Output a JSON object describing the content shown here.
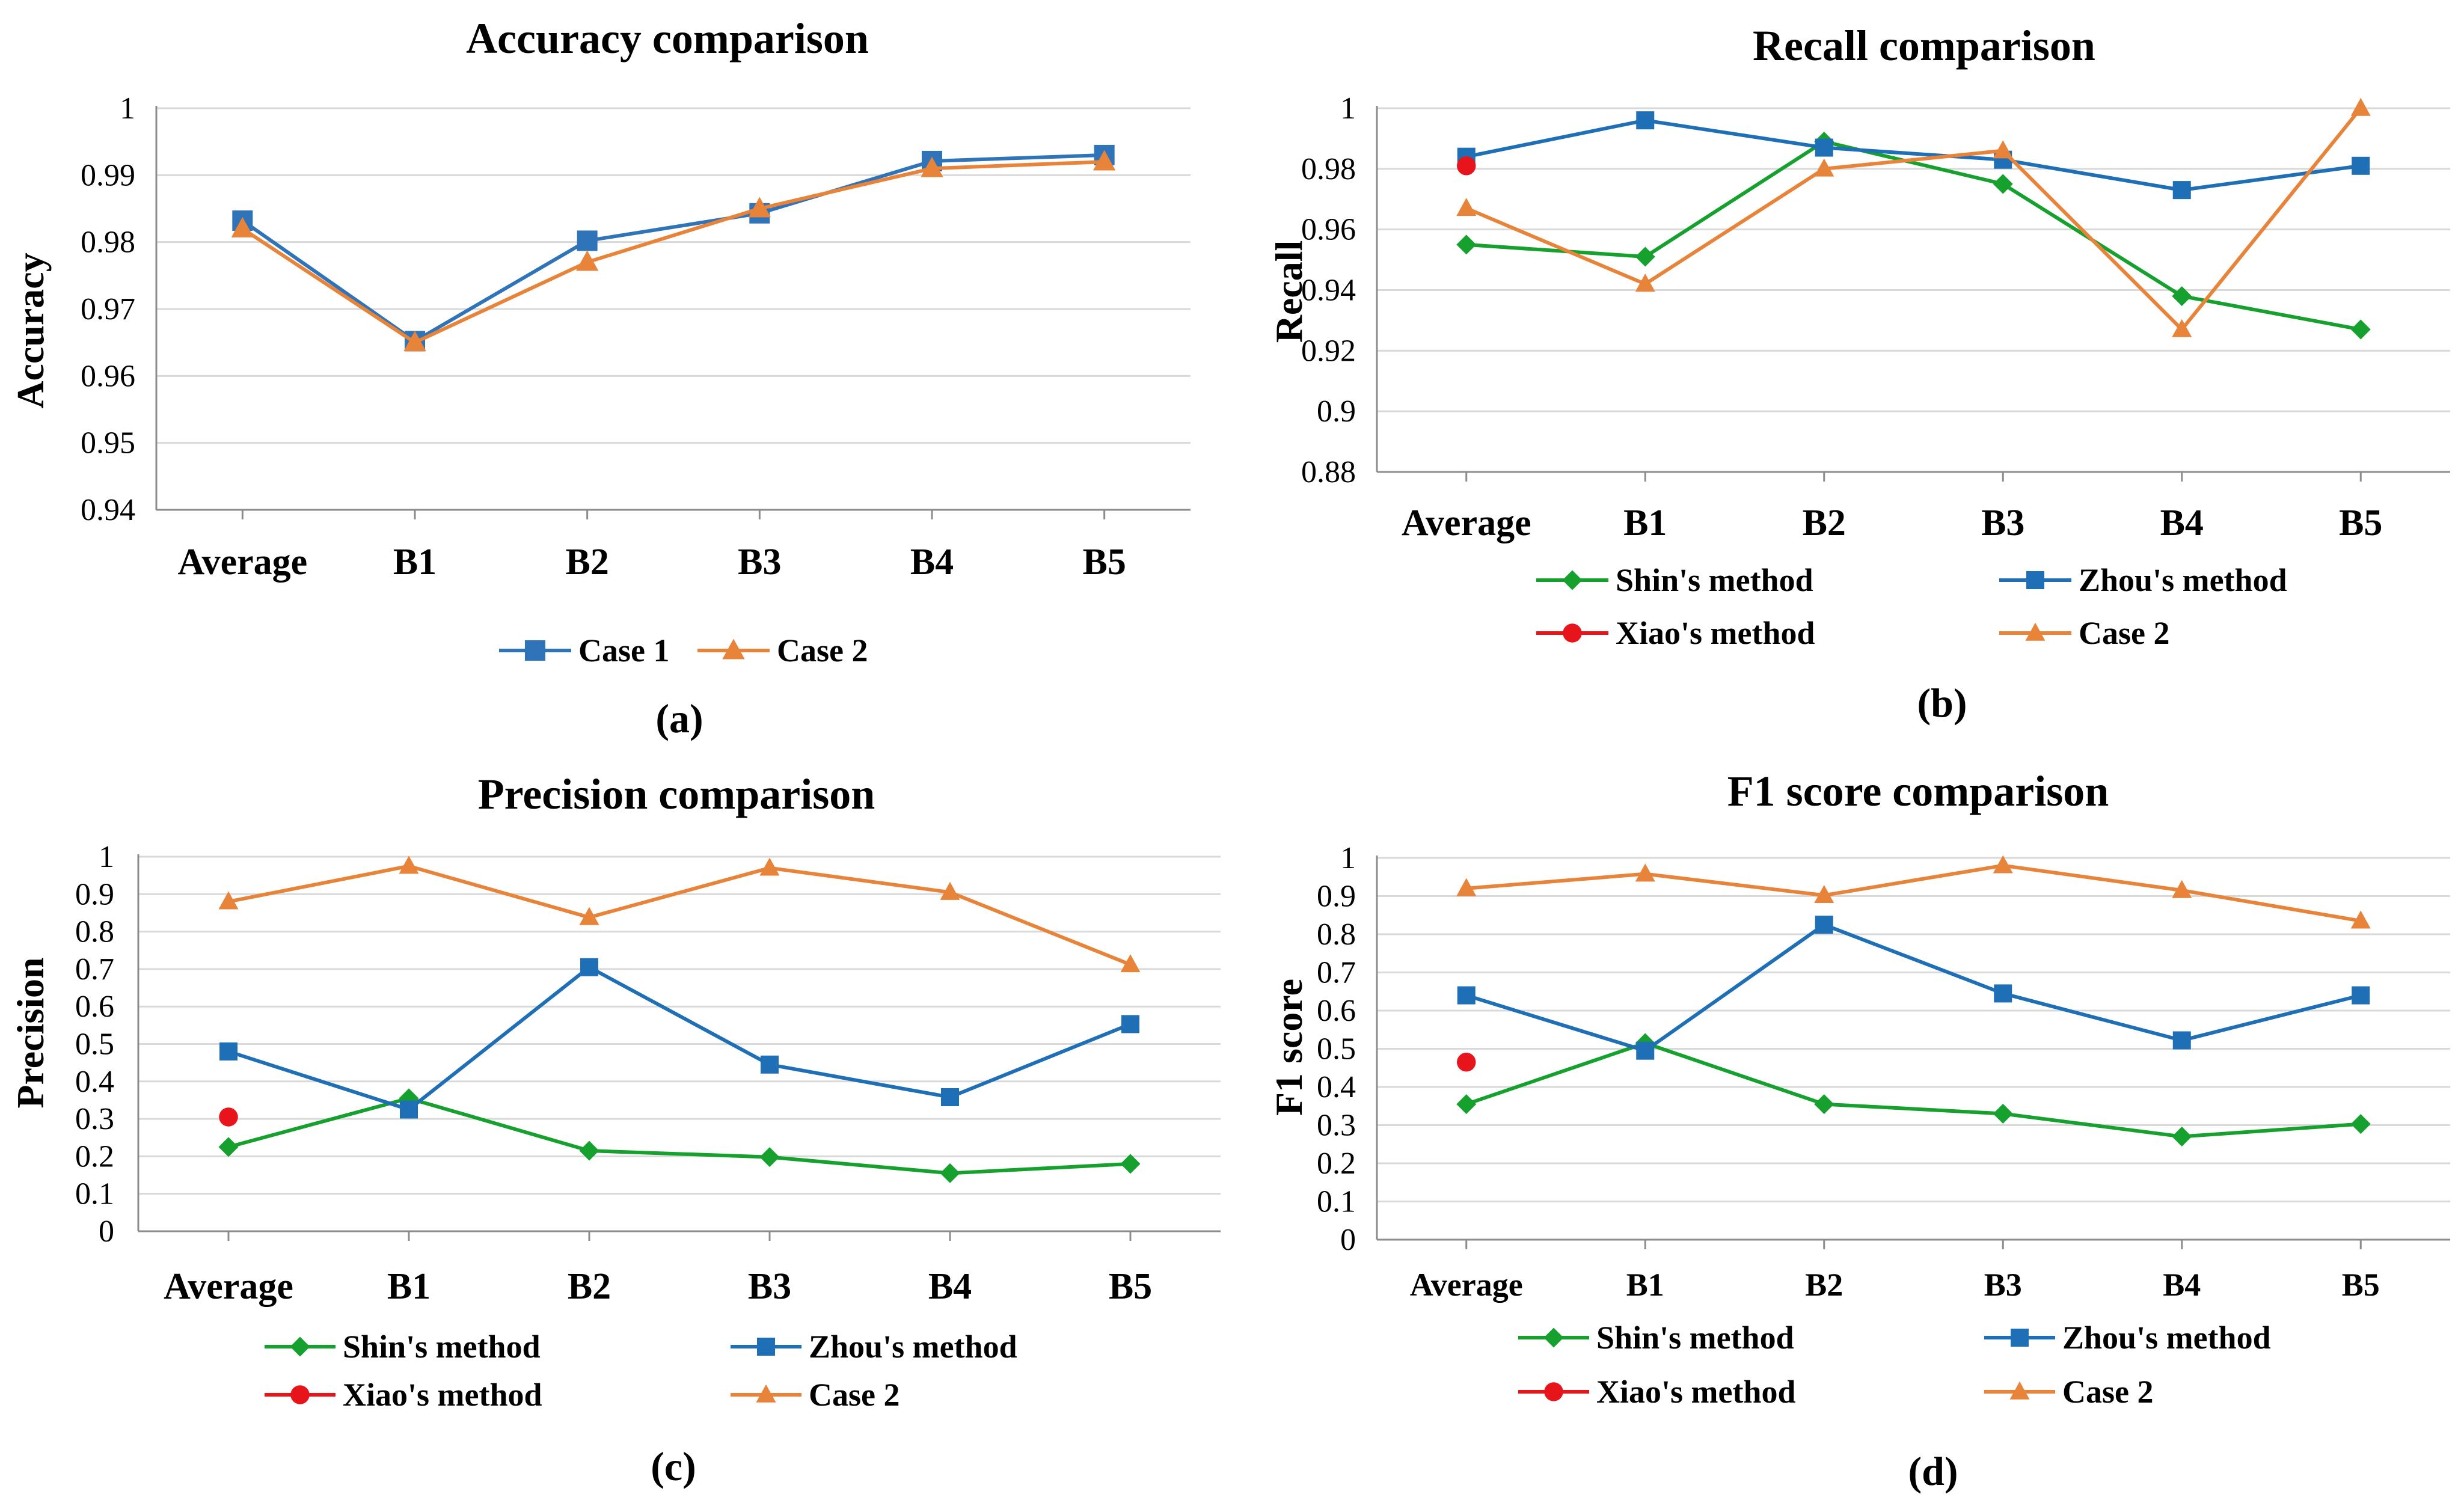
{
  "colors": {
    "shin": "#16a02e",
    "zhou": "#1f6fb6",
    "xiao": "#e8141c",
    "case2": "#e8843a",
    "case1": "#2f73b8"
  },
  "chart_data": [
    {
      "id": "a",
      "type": "line",
      "title": "Accuracy comparison",
      "ylabel": "Accuracy",
      "caption": "(a)",
      "categories": [
        "Average",
        "B1",
        "B2",
        "B3",
        "B4",
        "B5"
      ],
      "ylim": [
        0.94,
        1
      ],
      "yticks": [
        "0.94",
        "0.95",
        "0.96",
        "0.97",
        "0.98",
        "0.99",
        "1"
      ],
      "series": [
        {
          "name": "Case 1",
          "color": "#2f73b8",
          "marker": "square",
          "values": [
            0.9832,
            0.9652,
            0.9802,
            0.9843,
            0.9921,
            0.993
          ]
        },
        {
          "name": "Case 2",
          "color": "#e8843a",
          "marker": "triangle",
          "values": [
            0.982,
            0.965,
            0.977,
            0.985,
            0.991,
            0.992
          ]
        }
      ]
    },
    {
      "id": "b",
      "type": "line",
      "title": "Recall comparison",
      "ylabel": "Recall",
      "caption": "(b)",
      "categories": [
        "Average",
        "B1",
        "B2",
        "B3",
        "B4",
        "B5"
      ],
      "ylim": [
        0.88,
        1
      ],
      "yticks": [
        "0.88",
        "0.9",
        "0.92",
        "0.94",
        "0.96",
        "0.98",
        "1"
      ],
      "series": [
        {
          "name": "Shin's method",
          "color": "#16a02e",
          "marker": "diamond",
          "values": [
            0.955,
            0.951,
            0.989,
            0.975,
            0.938,
            0.927
          ]
        },
        {
          "name": "Zhou's method",
          "color": "#1f6fb6",
          "marker": "square",
          "values": [
            0.984,
            0.996,
            0.987,
            0.983,
            0.973,
            0.981
          ]
        },
        {
          "name": "Xiao's method",
          "color": "#e8141c",
          "marker": "circle",
          "values": [
            0.981,
            null,
            null,
            null,
            null,
            null
          ]
        },
        {
          "name": "Case 2",
          "color": "#e8843a",
          "marker": "triangle",
          "values": [
            0.967,
            0.942,
            0.98,
            0.986,
            0.927,
            1.0
          ]
        }
      ]
    },
    {
      "id": "c",
      "type": "line",
      "title": "Precision comparison",
      "ylabel": "Precision",
      "caption": "(c)",
      "categories": [
        "Average",
        "B1",
        "B2",
        "B3",
        "B4",
        "B5"
      ],
      "ylim": [
        0,
        1
      ],
      "yticks": [
        "0",
        "0.1",
        "0.2",
        "0.3",
        "0.4",
        "0.5",
        "0.6",
        "0.7",
        "0.8",
        "0.9",
        "1"
      ],
      "series": [
        {
          "name": "Shin's method",
          "color": "#16a02e",
          "marker": "diamond",
          "values": [
            0.225,
            0.355,
            0.215,
            0.198,
            0.155,
            0.18
          ]
        },
        {
          "name": "Zhou's method",
          "color": "#1f6fb6",
          "marker": "square",
          "values": [
            0.48,
            0.325,
            0.705,
            0.445,
            0.358,
            0.553
          ]
        },
        {
          "name": "Xiao's method",
          "color": "#e8141c",
          "marker": "circle",
          "values": [
            0.305,
            null,
            null,
            null,
            null,
            null
          ]
        },
        {
          "name": "Case 2",
          "color": "#e8843a",
          "marker": "triangle",
          "values": [
            0.88,
            0.975,
            0.838,
            0.97,
            0.905,
            0.712
          ]
        }
      ]
    },
    {
      "id": "d",
      "type": "line",
      "title": "F1 score comparison",
      "ylabel": "F1 score",
      "caption": "(d)",
      "categories": [
        "Average",
        "B1",
        "B2",
        "B3",
        "B4",
        "B5"
      ],
      "ylim": [
        0,
        1
      ],
      "yticks": [
        "0",
        "0.1",
        "0.2",
        "0.3",
        "0.4",
        "0.5",
        "0.6",
        "0.7",
        "0.8",
        "0.9",
        "1"
      ],
      "series": [
        {
          "name": "Shin's method",
          "color": "#16a02e",
          "marker": "diamond",
          "values": [
            0.355,
            0.515,
            0.355,
            0.33,
            0.27,
            0.303
          ]
        },
        {
          "name": "Zhou's method",
          "color": "#1f6fb6",
          "marker": "square",
          "values": [
            0.64,
            0.495,
            0.825,
            0.645,
            0.522,
            0.64
          ]
        },
        {
          "name": "Xiao's method",
          "color": "#e8141c",
          "marker": "circle",
          "values": [
            0.465,
            null,
            null,
            null,
            null,
            null
          ]
        },
        {
          "name": "Case 2",
          "color": "#e8843a",
          "marker": "triangle",
          "values": [
            0.92,
            0.958,
            0.902,
            0.98,
            0.915,
            0.835
          ]
        }
      ]
    }
  ]
}
